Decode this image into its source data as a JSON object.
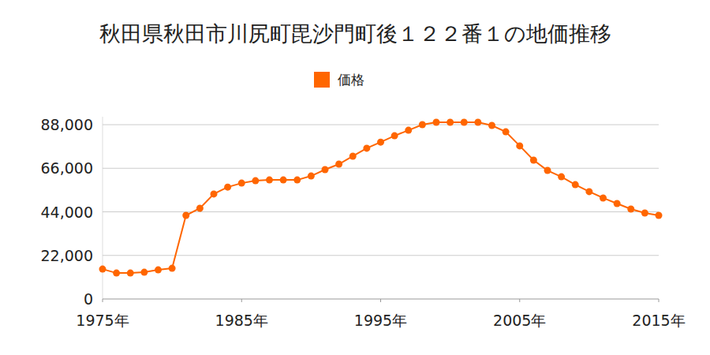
{
  "chart_data": {
    "type": "line",
    "title": "秋田県秋田市川尻町毘沙門町後１２２番１の地価推移",
    "x": [
      1975,
      1976,
      1977,
      1978,
      1979,
      1980,
      1981,
      1982,
      1983,
      1984,
      1985,
      1986,
      1987,
      1988,
      1989,
      1990,
      1991,
      1992,
      1993,
      1994,
      1995,
      1996,
      1997,
      1998,
      1999,
      2000,
      2001,
      2002,
      2003,
      2004,
      2005,
      2006,
      2007,
      2008,
      2009,
      2010,
      2011,
      2012,
      2013,
      2014,
      2015
    ],
    "series": [
      {
        "name": "価格",
        "color": "#ff6600",
        "marker": "circle",
        "values": [
          15100,
          13100,
          13100,
          13500,
          14700,
          15500,
          42200,
          45800,
          53000,
          56500,
          58500,
          59700,
          60100,
          60100,
          60100,
          62100,
          65300,
          68100,
          72100,
          76100,
          79200,
          82400,
          85200,
          88000,
          89200,
          89200,
          89200,
          89200,
          87600,
          84400,
          77300,
          70100,
          64900,
          61700,
          57700,
          54200,
          51000,
          48200,
          45400,
          43400,
          42200
        ]
      }
    ],
    "xlim": [
      1975,
      2015
    ],
    "xticks": [
      {
        "value": 1975,
        "label": "1975年"
      },
      {
        "value": 1985,
        "label": "1985年"
      },
      {
        "value": 1995,
        "label": "1995年"
      },
      {
        "value": 2005,
        "label": "2005年"
      },
      {
        "value": 2015,
        "label": "2015年"
      }
    ],
    "ylim": [
      0,
      92000
    ],
    "yticks": [
      0,
      {
        "value": 22000,
        "label": "22,000"
      },
      {
        "value": 44000,
        "label": "44,000"
      },
      {
        "value": 66000,
        "label": "66,000"
      },
      {
        "value": 88000,
        "label": "88,000"
      }
    ],
    "grid": true,
    "legend": "top"
  }
}
